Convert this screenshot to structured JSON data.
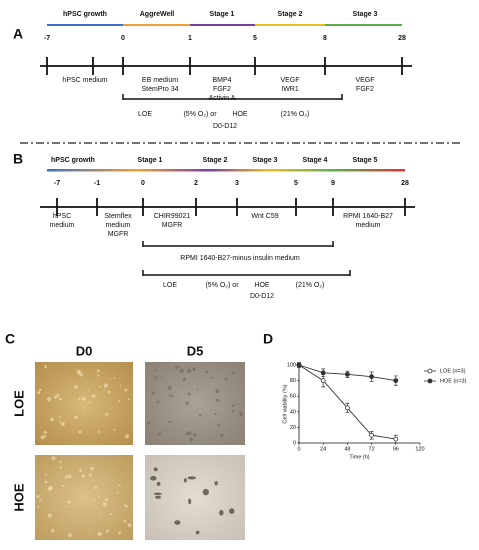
{
  "panel_a": {
    "label": "A",
    "stages": [
      "hPSC growth",
      "AggreWell",
      "Stage 1",
      "Stage 2",
      "Stage 3"
    ],
    "days": [
      "-7",
      "0",
      "1",
      "5",
      "8",
      "28"
    ],
    "media": [
      [
        "hPSC medium"
      ],
      [
        "EB medium",
        "StemPro 34"
      ],
      [
        "BMP4",
        "FGF2",
        "Activin A"
      ],
      [
        "VEGF",
        "IWR1"
      ],
      [
        "VEGF",
        "FGF2"
      ]
    ],
    "oxygen": [
      "LOE",
      "(5% O₂) or",
      "HOE",
      "(21% O₂)"
    ],
    "period": "D0-D12"
  },
  "panel_b": {
    "label": "B",
    "stages": [
      "hPSC growth",
      "Stage 1",
      "Stage 2",
      "Stage 3",
      "Stage 4",
      "Stage 5"
    ],
    "days": [
      "-7",
      "-1",
      "0",
      "2",
      "3",
      "5",
      "9",
      "28"
    ],
    "media": [
      [
        "hPSC",
        "medium"
      ],
      [
        "Stemflex",
        "medium",
        "MGFR"
      ],
      [
        "CHIR99021",
        "MGFR"
      ],
      [
        "Wnt C59"
      ],
      [
        "RPMI 1640-B27",
        "medium"
      ]
    ],
    "insulin_note": "RPMI 1640-B27-minus insulin medium",
    "oxygen": [
      "LOE",
      "(5% O₂) or",
      "HOE",
      "(21% O₂)"
    ],
    "period": "D0-D12"
  },
  "panel_c": {
    "label": "C",
    "columns": [
      "D0",
      "D5"
    ],
    "rows": [
      "LOE",
      "HOE"
    ]
  },
  "chart_data": {
    "type": "line",
    "label": "D",
    "xlabel": "Time (h)",
    "ylabel": "Cell viability (%)",
    "x": [
      0,
      24,
      48,
      72,
      96
    ],
    "xlim": [
      0,
      120
    ],
    "xticks": [
      0,
      24,
      48,
      72,
      96,
      120
    ],
    "ylim": [
      0,
      100
    ],
    "yticks": [
      0,
      20,
      40,
      60,
      80,
      100
    ],
    "legend": "upper right",
    "series": [
      {
        "name": "LOE (n=3)",
        "color": "#333333",
        "marker": "open-circle",
        "values": [
          100,
          80,
          45,
          10,
          5
        ],
        "errors": [
          3,
          8,
          6,
          5,
          5
        ]
      },
      {
        "name": "HOE (n=3)",
        "color": "#333333",
        "marker": "filled-circle",
        "values": [
          100,
          90,
          88,
          85,
          80
        ],
        "errors": [
          2,
          5,
          4,
          6,
          6
        ]
      }
    ]
  }
}
